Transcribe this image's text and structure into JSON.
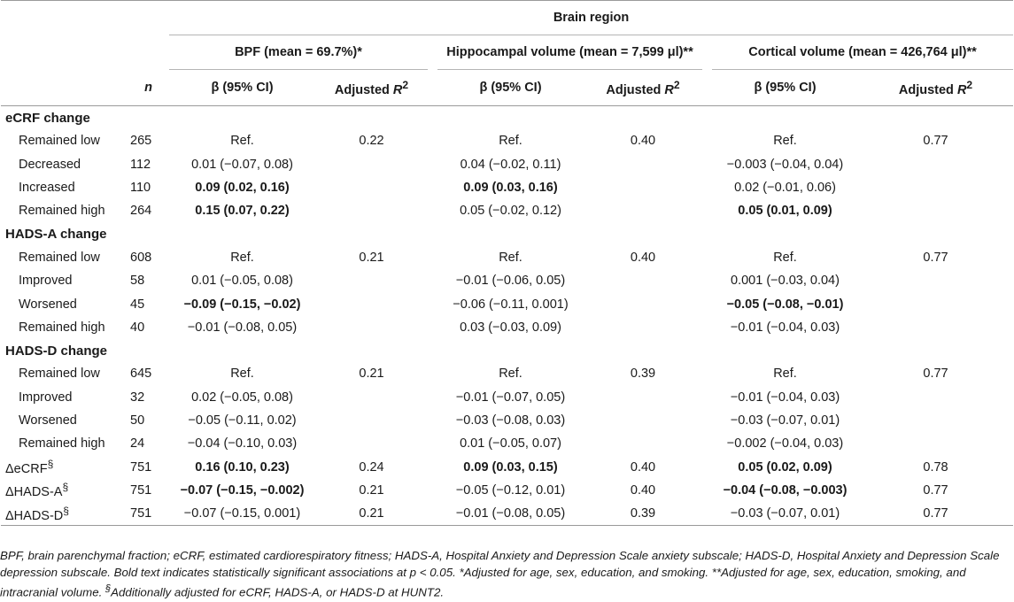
{
  "header": {
    "group": "Brain region",
    "n_label": "n",
    "regions": [
      {
        "name": "BPF (mean = 69.7%)*"
      },
      {
        "name": "Hippocampal volume (mean = 7,599 μl)**"
      },
      {
        "name": "Cortical volume (mean = 426,764 μl)**"
      }
    ],
    "beta_label": "β (95% CI)",
    "r2_label_prefix": "Adjusted ",
    "r2_label_var": "R",
    "r2_label_sup": "2"
  },
  "sections": [
    {
      "title": "eCRF change",
      "rows": [
        {
          "label": "Remained low",
          "n": "265",
          "bpf_b": "Ref.",
          "bpf_r2": "0.22",
          "hip_b": "Ref.",
          "hip_r2": "0.40",
          "cor_b": "Ref.",
          "cor_r2": "0.77"
        },
        {
          "label": "Decreased",
          "n": "112",
          "bpf_b": "0.01 (−0.07, 0.08)",
          "bpf_r2": "",
          "hip_b": "0.04 (−0.02, 0.11)",
          "hip_r2": "",
          "cor_b": "−0.003 (−0.04, 0.04)",
          "cor_r2": ""
        },
        {
          "label": "Increased",
          "n": "110",
          "bpf_b": "0.09 (0.02, 0.16)",
          "bpf_r2": "",
          "hip_b": "0.09 (0.03, 0.16)",
          "hip_r2": "",
          "cor_b": "0.02 (−0.01, 0.06)",
          "cor_r2": ""
        },
        {
          "label": "Remained high",
          "n": "264",
          "bpf_b": "0.15 (0.07, 0.22)",
          "bpf_r2": "",
          "hip_b": "0.05 (−0.02, 0.12)",
          "hip_r2": "",
          "cor_b": "0.05 (0.01, 0.09)",
          "cor_r2": ""
        }
      ]
    },
    {
      "title": "HADS-A change",
      "rows": [
        {
          "label": "Remained low",
          "n": "608",
          "bpf_b": "Ref.",
          "bpf_r2": "0.21",
          "hip_b": "Ref.",
          "hip_r2": "0.40",
          "cor_b": "Ref.",
          "cor_r2": "0.77"
        },
        {
          "label": "Improved",
          "n": "58",
          "bpf_b": "0.01 (−0.05, 0.08)",
          "bpf_r2": "",
          "hip_b": "−0.01 (−0.06, 0.05)",
          "hip_r2": "",
          "cor_b": "0.001 (−0.03, 0.04)",
          "cor_r2": ""
        },
        {
          "label": "Worsened",
          "n": "45",
          "bpf_b": "−0.09 (−0.15, −0.02)",
          "bpf_r2": "",
          "hip_b": "−0.06 (−0.11, 0.001)",
          "hip_r2": "",
          "cor_b": "−0.05 (−0.08, −0.01)",
          "cor_r2": ""
        },
        {
          "label": "Remained high",
          "n": "40",
          "bpf_b": "−0.01 (−0.08, 0.05)",
          "bpf_r2": "",
          "hip_b": "0.03 (−0.03, 0.09)",
          "hip_r2": "",
          "cor_b": "−0.01 (−0.04, 0.03)",
          "cor_r2": ""
        }
      ]
    },
    {
      "title": "HADS-D change",
      "rows": [
        {
          "label": "Remained low",
          "n": "645",
          "bpf_b": "Ref.",
          "bpf_r2": "0.21",
          "hip_b": "Ref.",
          "hip_r2": "0.39",
          "cor_b": "Ref.",
          "cor_r2": "0.77"
        },
        {
          "label": "Improved",
          "n": "32",
          "bpf_b": "0.02 (−0.05, 0.08)",
          "bpf_r2": "",
          "hip_b": "−0.01 (−0.07, 0.05)",
          "hip_r2": "",
          "cor_b": "−0.01 (−0.04, 0.03)",
          "cor_r2": ""
        },
        {
          "label": "Worsened",
          "n": "50",
          "bpf_b": "−0.05 (−0.11, 0.02)",
          "bpf_r2": "",
          "hip_b": "−0.03 (−0.08, 0.03)",
          "hip_r2": "",
          "cor_b": "−0.03 (−0.07, 0.01)",
          "cor_r2": ""
        },
        {
          "label": "Remained high",
          "n": "24",
          "bpf_b": "−0.04 (−0.10, 0.03)",
          "bpf_r2": "",
          "hip_b": "0.01 (−0.05, 0.07)",
          "hip_r2": "",
          "cor_b": "−0.002 (−0.04, 0.03)",
          "cor_r2": ""
        }
      ]
    }
  ],
  "delta_rows": [
    {
      "label": "ΔeCRF",
      "sup": "§",
      "n": "751",
      "bpf_b": "0.16 (0.10, 0.23)",
      "bpf_r2": "0.24",
      "hip_b": "0.09 (0.03, 0.15)",
      "hip_r2": "0.40",
      "cor_b": "0.05 (0.02, 0.09)",
      "cor_r2": "0.78"
    },
    {
      "label": "ΔHADS-A",
      "sup": "§",
      "n": "751",
      "bpf_b": "−0.07 (−0.15, −0.002)",
      "bpf_r2": "0.21",
      "hip_b": "−0.05 (−0.12, 0.01)",
      "hip_r2": "0.40",
      "cor_b": "−0.04 (−0.08, −0.003)",
      "cor_r2": "0.77"
    },
    {
      "label": "ΔHADS-D",
      "sup": "§",
      "n": "751",
      "bpf_b": "−0.07 (−0.15, 0.001)",
      "bpf_r2": "0.21",
      "hip_b": "−0.01 (−0.08, 0.05)",
      "hip_r2": "0.39",
      "cor_b": "−0.03 (−0.07, 0.01)",
      "cor_r2": "0.77"
    }
  ],
  "bold_cells": [
    "s0r2bpf_b",
    "s0r2hip_b",
    "s0r3bpf_b",
    "s0r3cor_b",
    "s1r2bpf_b",
    "s1r2cor_b",
    "d0bpf_b",
    "d0hip_b",
    "d0cor_b",
    "d1bpf_b",
    "d1cor_b"
  ],
  "footnote": {
    "line1": "BPF, brain parenchymal fraction; eCRF, estimated cardiorespiratory fitness; HADS-A, Hospital Anxiety and Depression Scale anxiety subscale; HADS-D, Hospital Anxiety and Depression Scale depression subscale. Bold text indicates statistically significant associations at p < 0.05. *Adjusted for age, sex, education, and smoking. **Adjusted for age, sex, education, smoking, and intracranial volume.",
    "sup": "§",
    "line2": "Additionally adjusted for eCRF, HADS-A, or HADS-D at HUNT2."
  }
}
